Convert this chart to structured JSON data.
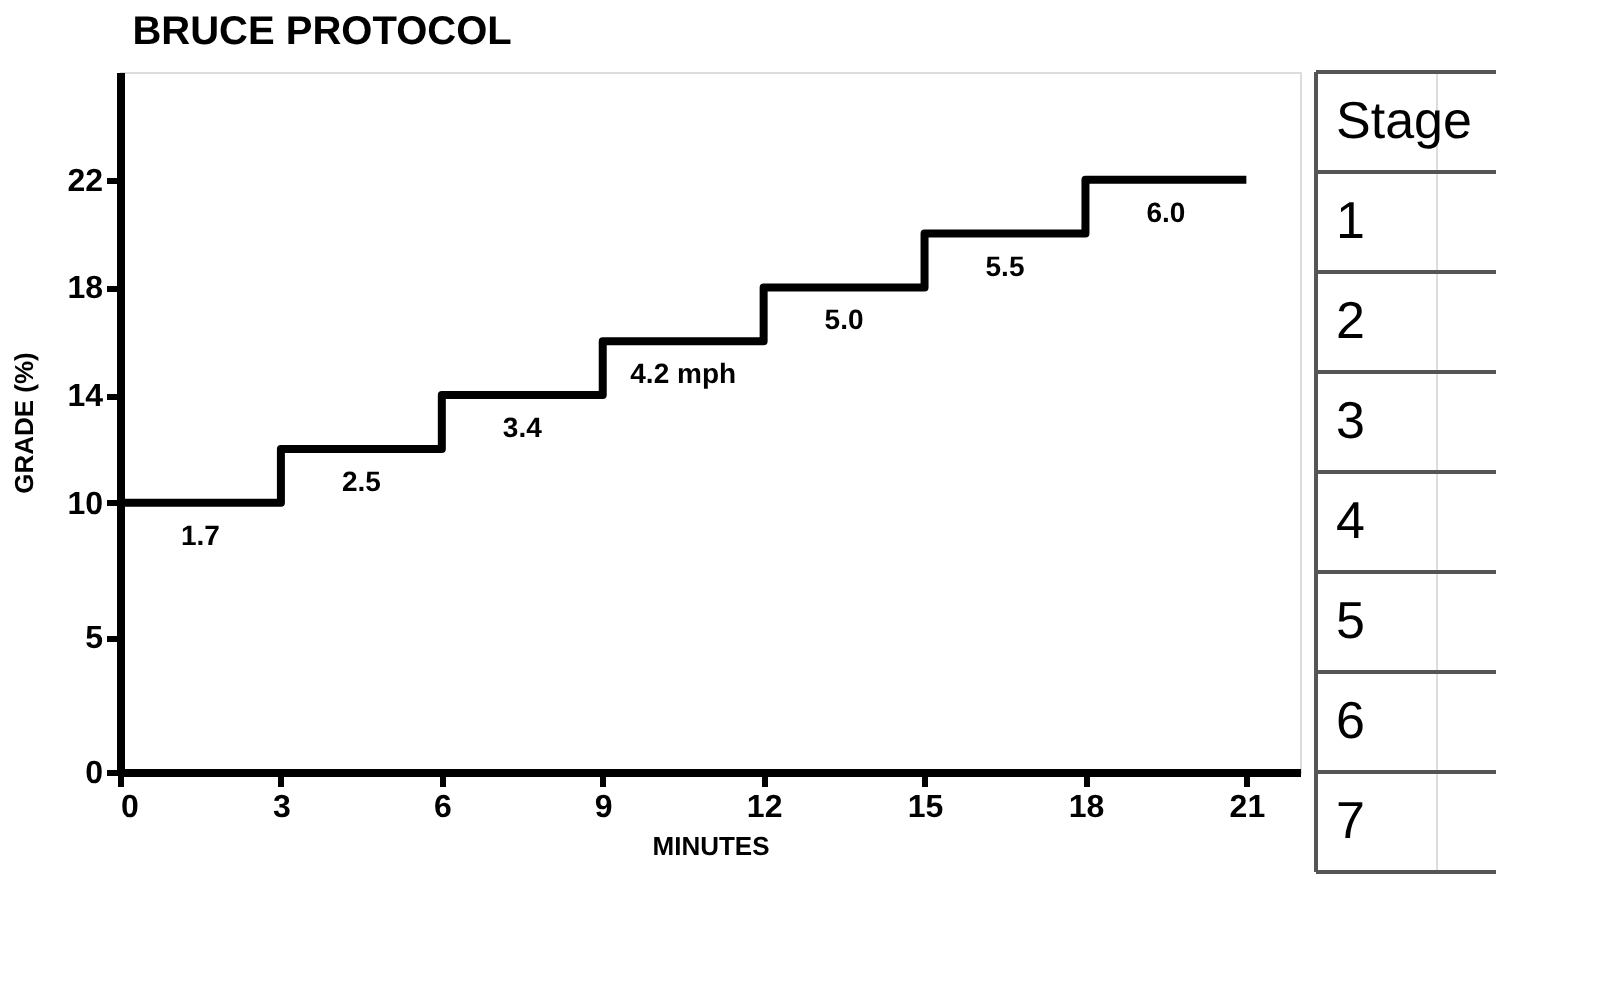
{
  "chart_data": {
    "type": "step",
    "title": "BRUCE PROTOCOL",
    "xlabel": "MINUTES",
    "ylabel": "GRADE (%)",
    "x": [
      0,
      3,
      6,
      9,
      12,
      15,
      18,
      21
    ],
    "series": [
      {
        "color": "#000000",
        "values": [
          10,
          12,
          14,
          16,
          18,
          20,
          22,
          22
        ]
      }
    ],
    "xlim": [
      0,
      22
    ],
    "xticks": [
      0,
      3,
      6,
      9,
      12,
      15,
      18,
      21
    ],
    "ylim": [
      0,
      26
    ],
    "yticks": [
      0,
      5,
      10,
      14,
      18,
      22
    ],
    "grid": false,
    "marker": "none",
    "line_style": "solid",
    "annotations": [
      {
        "text": "1.7",
        "x": 1.5,
        "y": 10
      },
      {
        "text": "2.5",
        "x": 4.5,
        "y": 12
      },
      {
        "text": "3.4",
        "x": 7.5,
        "y": 14
      },
      {
        "text": "4.2 mph",
        "x": 10.5,
        "y": 16
      },
      {
        "text": "5.0",
        "x": 13.5,
        "y": 18
      },
      {
        "text": "5.5",
        "x": 16.5,
        "y": 20
      },
      {
        "text": "6.0",
        "x": 19.5,
        "y": 22
      },
      "Stage",
      "1",
      "2",
      "3",
      "4",
      "5",
      "6",
      "7"
    ]
  }
}
